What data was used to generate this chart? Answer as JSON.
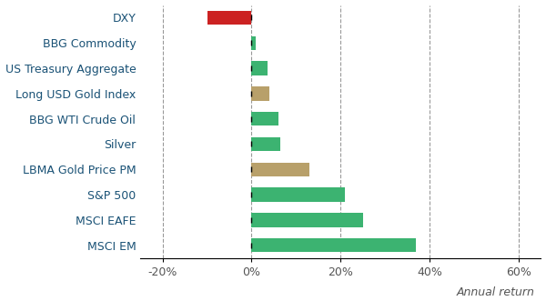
{
  "categories": [
    "DXY",
    "BBG Commodity",
    "US Treasury Aggregate",
    "Long USD Gold Index",
    "BBG WTI Crude Oil",
    "Silver",
    "LBMA Gold Price PM",
    "S&P 500",
    "MSCI EAFE",
    "MSCI EM"
  ],
  "values": [
    -10.0,
    1.0,
    3.5,
    4.0,
    6.0,
    6.5,
    13.0,
    21.0,
    25.0,
    37.0
  ],
  "colors": [
    "#cc2222",
    "#3cb371",
    "#3cb371",
    "#b8a06a",
    "#3cb371",
    "#3cb371",
    "#b8a06a",
    "#3cb371",
    "#3cb371",
    "#3cb371"
  ],
  "xlim": [
    -25,
    65
  ],
  "xticks": [
    -20,
    0,
    20,
    40,
    60
  ],
  "xtick_labels": [
    "-20%",
    "0%",
    "20%",
    "40%",
    "60%"
  ],
  "xlabel": "Annual return",
  "bg_color": "#ffffff",
  "label_color": "#1a5276",
  "tick_color": "#555555",
  "grid_color": "#999999",
  "bar_height": 0.55
}
